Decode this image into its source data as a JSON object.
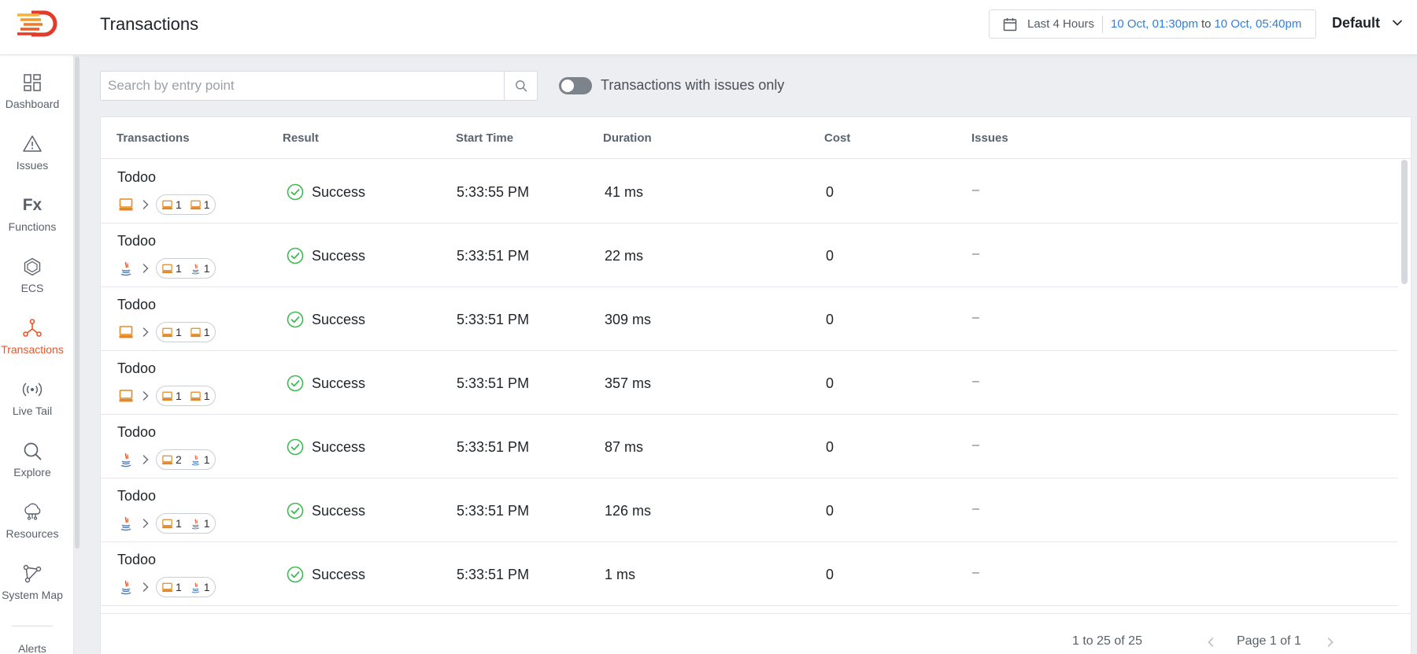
{
  "header": {
    "title": "Transactions",
    "time_preset": "Last 4 Hours",
    "time_from": "10 Oct, 01:30pm",
    "time_to_word": "to",
    "time_to": "10 Oct, 05:40pm",
    "environment": "Default"
  },
  "sidebar": {
    "items": [
      {
        "label": "Dashboard",
        "icon": "dashboard-icon"
      },
      {
        "label": "Issues",
        "icon": "warning-icon"
      },
      {
        "label": "Functions",
        "icon": "fx-icon"
      },
      {
        "label": "ECS",
        "icon": "hexagon-icon"
      },
      {
        "label": "Transactions",
        "icon": "transactions-icon",
        "active": true
      },
      {
        "label": "Live Tail",
        "icon": "broadcast-icon"
      },
      {
        "label": "Explore",
        "icon": "search-icon"
      },
      {
        "label": "Resources",
        "icon": "cloud-icon"
      },
      {
        "label": "System Map",
        "icon": "system-map-icon"
      },
      {
        "label": "Alerts",
        "icon": "bell-icon"
      }
    ],
    "fx_glyph": "Fx"
  },
  "filters": {
    "search_placeholder": "Search by entry point",
    "issues_toggle_label": "Transactions with issues only",
    "issues_toggle_on": false
  },
  "table": {
    "columns": [
      "Transactions",
      "Result",
      "Start Time",
      "Duration",
      "Cost",
      "Issues"
    ],
    "rows": [
      {
        "name": "Todoo",
        "source": "server",
        "pill": [
          {
            "type": "server",
            "count": "1"
          },
          {
            "type": "server",
            "count": "1"
          }
        ],
        "result": "Success",
        "start_time": "5:33:55 PM",
        "duration": "41 ms",
        "cost": "0",
        "issues": "–"
      },
      {
        "name": "Todoo",
        "source": "java",
        "pill": [
          {
            "type": "server",
            "count": "1"
          },
          {
            "type": "java",
            "count": "1"
          }
        ],
        "result": "Success",
        "start_time": "5:33:51 PM",
        "duration": "22 ms",
        "cost": "0",
        "issues": "–"
      },
      {
        "name": "Todoo",
        "source": "server",
        "pill": [
          {
            "type": "server",
            "count": "1"
          },
          {
            "type": "server",
            "count": "1"
          }
        ],
        "result": "Success",
        "start_time": "5:33:51 PM",
        "duration": "309 ms",
        "cost": "0",
        "issues": "–"
      },
      {
        "name": "Todoo",
        "source": "server",
        "pill": [
          {
            "type": "server",
            "count": "1"
          },
          {
            "type": "server",
            "count": "1"
          }
        ],
        "result": "Success",
        "start_time": "5:33:51 PM",
        "duration": "357 ms",
        "cost": "0",
        "issues": "–"
      },
      {
        "name": "Todoo",
        "source": "java",
        "pill": [
          {
            "type": "server",
            "count": "2"
          },
          {
            "type": "java",
            "count": "1"
          }
        ],
        "result": "Success",
        "start_time": "5:33:51 PM",
        "duration": "87 ms",
        "cost": "0",
        "issues": "–"
      },
      {
        "name": "Todoo",
        "source": "java",
        "pill": [
          {
            "type": "server",
            "count": "1"
          },
          {
            "type": "java",
            "count": "1"
          }
        ],
        "result": "Success",
        "start_time": "5:33:51 PM",
        "duration": "126 ms",
        "cost": "0",
        "issues": "–"
      },
      {
        "name": "Todoo",
        "source": "java",
        "pill": [
          {
            "type": "server",
            "count": "1"
          },
          {
            "type": "java",
            "count": "1"
          }
        ],
        "result": "Success",
        "start_time": "5:33:51 PM",
        "duration": "1 ms",
        "cost": "0",
        "issues": "–"
      }
    ]
  },
  "pagination": {
    "range": "1 to 25 of 25",
    "page": "Page 1 of 1"
  },
  "colors": {
    "accent": "#e8552a",
    "link": "#2f7fe0",
    "success": "#3fb950",
    "server_icon": "#e0882a",
    "java_blue": "#4a78b5",
    "java_red": "#e0552a"
  }
}
